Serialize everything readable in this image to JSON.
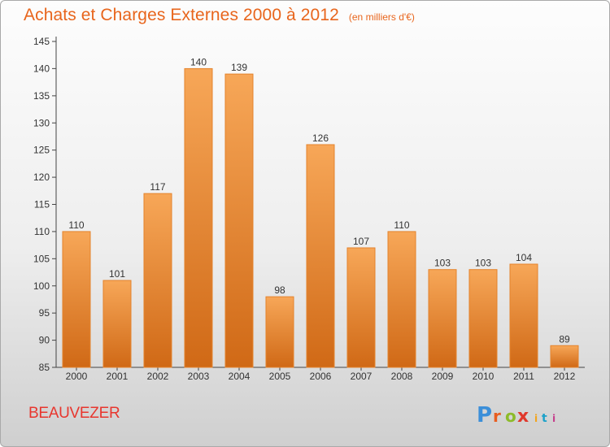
{
  "header": {
    "title": "Achats et Charges Externes 2000 à 2012",
    "unit": "(en milliers d'€)"
  },
  "place": "BEAUVEZER",
  "logo": {
    "text": "Proxiti",
    "colors": [
      "#3b8fd9",
      "#e85d1f",
      "#8dbb2a",
      "#e0382b",
      "#f2a41c",
      "#1ba1c9",
      "#c63f8c"
    ]
  },
  "colors": {
    "title": "#e8651c",
    "bar_light": "#f7a758",
    "bar_dark": "#d06916",
    "place": "#e8362e"
  },
  "chart_data": {
    "type": "bar",
    "title": "Achats et Charges Externes 2000 à 2012",
    "subtitle": "(en milliers d'€)",
    "categories": [
      "2000",
      "2001",
      "2002",
      "2003",
      "2004",
      "2005",
      "2006",
      "2007",
      "2008",
      "2009",
      "2010",
      "2011",
      "2012"
    ],
    "values": [
      110,
      101,
      117,
      140,
      139,
      98,
      126,
      107,
      110,
      103,
      103,
      104,
      89
    ],
    "ylim": [
      85,
      145
    ],
    "yticks": [
      85,
      90,
      95,
      100,
      105,
      110,
      115,
      120,
      125,
      130,
      135,
      140,
      145
    ],
    "grid": false,
    "legend": "none"
  }
}
